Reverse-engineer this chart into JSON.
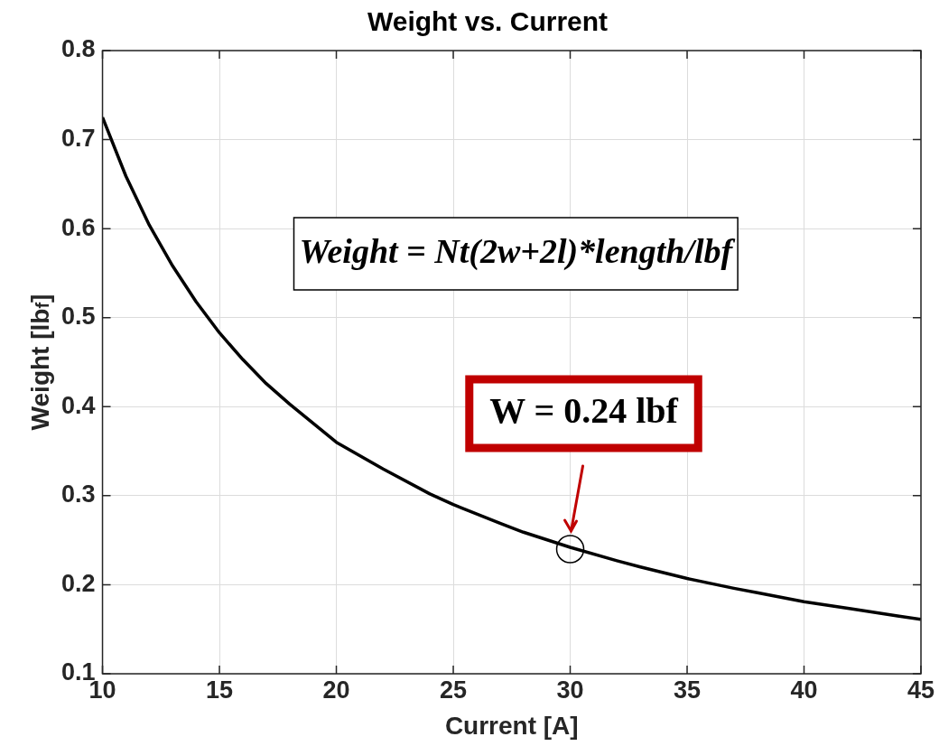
{
  "chart_data": {
    "type": "line",
    "title": "Weight vs. Current",
    "xlabel": "Current [A]",
    "ylabel": "Weight [lb$_{f}$]",
    "x": [
      10,
      11,
      12,
      13,
      14,
      15,
      16,
      17,
      18,
      20,
      22,
      24,
      25,
      27,
      28,
      30,
      32,
      33,
      35,
      37,
      38,
      40,
      42,
      44,
      45
    ],
    "series": [
      {
        "color": "#000000",
        "values": [
          0.725,
          0.659,
          0.604,
          0.558,
          0.518,
          0.483,
          0.453,
          0.426,
          0.403,
          0.36,
          0.33,
          0.302,
          0.29,
          0.269,
          0.259,
          0.242,
          0.227,
          0.22,
          0.207,
          0.196,
          0.191,
          0.181,
          0.173,
          0.165,
          0.161
        ]
      },
      {
        "type": "scatter",
        "x": [
          30
        ],
        "color": "#000000",
        "values": [
          0.24
        ]
      }
    ],
    "xlim": [
      10,
      45
    ],
    "xticks": [
      10,
      15,
      20,
      25,
      30,
      35,
      40,
      45
    ],
    "ylim": [
      0.1,
      0.8
    ],
    "yticks": [
      0.1,
      0.2,
      0.3,
      0.4,
      0.5,
      0.6,
      0.7,
      0.8
    ],
    "grid": true,
    "legend": false,
    "line_style": "solid",
    "annotations": [
      "Weight = Nt(2w+2l)*length/lbf",
      "W = 0.24 lbf"
    ]
  }
}
